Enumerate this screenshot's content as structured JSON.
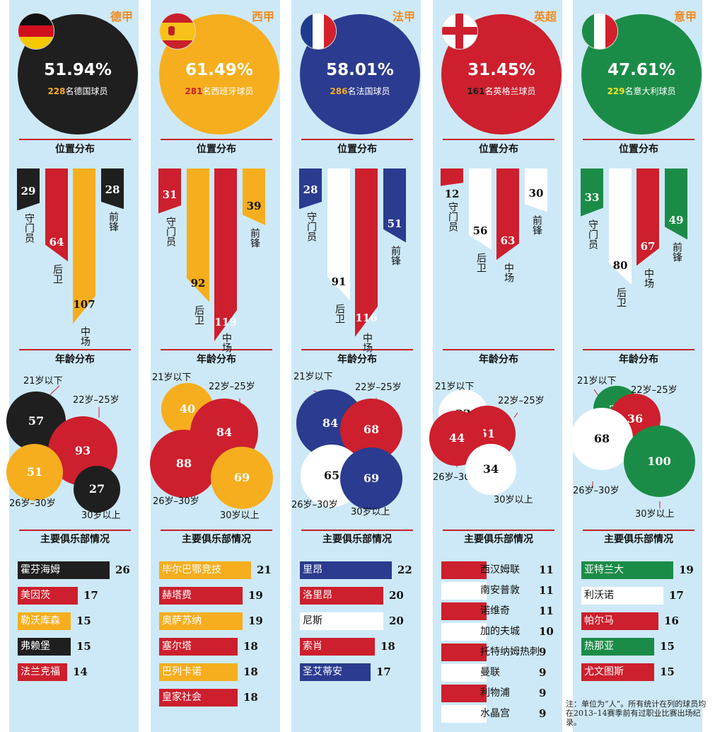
{
  "section_titles": {
    "position": "位置分布",
    "age": "年龄分布",
    "clubs": "主要俱乐部情况"
  },
  "note": "注：单位为“人”。所有统计在列的球员均在2013–14赛季前有过职业比赛出场纪录。",
  "colors": {
    "panel": "#cde9f7",
    "accent": "#c8202c"
  },
  "chart_data": [
    {
      "type": "bar",
      "league": "德甲",
      "flag": "germany",
      "percent": "51.94%",
      "players_count": "228",
      "players_suffix": "名德国球员",
      "colors": {
        "main": "#1f1f1f",
        "count": "#f6ae1e"
      },
      "positions": [
        {
          "label": "守门员",
          "value": 29,
          "color": "#1f1f1f"
        },
        {
          "label": "后卫",
          "value": 64,
          "color": "#cd1f2d"
        },
        {
          "label": "中场",
          "value": 107,
          "color": "#f6ae1e"
        },
        {
          "label": "前锋",
          "value": 28,
          "color": "#1f1f1f"
        }
      ],
      "ages": [
        {
          "label": "21岁以下",
          "value": 57,
          "color": "#1f1f1f"
        },
        {
          "label": "22岁–25岁",
          "value": 93,
          "color": "#cd1f2d"
        },
        {
          "label": "26岁–30岁",
          "value": 51,
          "color": "#f6ae1e"
        },
        {
          "label": "30岁以上",
          "value": 27,
          "color": "#1f1f1f"
        }
      ],
      "clubs": [
        {
          "name": "霍芬海姆",
          "value": 26,
          "color": "#1f1f1f"
        },
        {
          "name": "美因茨",
          "value": 17,
          "color": "#cd1f2d"
        },
        {
          "name": "勒沃库森",
          "value": 15,
          "color": "#f6ae1e"
        },
        {
          "name": "弗赖堡",
          "value": 15,
          "color": "#1f1f1f"
        },
        {
          "name": "法兰克福",
          "value": 14,
          "color": "#cd1f2d"
        }
      ]
    },
    {
      "type": "bar",
      "league": "西甲",
      "flag": "spain",
      "percent": "61.49%",
      "players_count": "281",
      "players_suffix": "名西班牙球员",
      "colors": {
        "main": "#f6ae1e",
        "count": "#cd1f2d"
      },
      "positions": [
        {
          "label": "守门员",
          "value": 31,
          "color": "#cd1f2d"
        },
        {
          "label": "后卫",
          "value": 92,
          "color": "#f6ae1e"
        },
        {
          "label": "中场",
          "value": 119,
          "color": "#cd1f2d"
        },
        {
          "label": "前锋",
          "value": 39,
          "color": "#f6ae1e"
        }
      ],
      "ages": [
        {
          "label": "21岁以下",
          "value": 40,
          "color": "#f6ae1e"
        },
        {
          "label": "22岁–25岁",
          "value": 84,
          "color": "#cd1f2d"
        },
        {
          "label": "26岁–30岁",
          "value": 88,
          "color": "#cd1f2d"
        },
        {
          "label": "30岁以上",
          "value": 69,
          "color": "#f6ae1e"
        }
      ],
      "clubs": [
        {
          "name": "毕尔巴鄂竞技",
          "value": 21,
          "color": "#f6ae1e"
        },
        {
          "name": "赫塔费",
          "value": 19,
          "color": "#cd1f2d"
        },
        {
          "name": "奥萨苏纳",
          "value": 19,
          "color": "#f6ae1e"
        },
        {
          "name": "塞尔塔",
          "value": 18,
          "color": "#cd1f2d"
        },
        {
          "name": "巴列卡诺",
          "value": 18,
          "color": "#f6ae1e"
        },
        {
          "name": "皇家社会",
          "value": 18,
          "color": "#cd1f2d"
        }
      ]
    },
    {
      "type": "bar",
      "league": "法甲",
      "flag": "france",
      "percent": "58.01%",
      "players_count": "286",
      "players_suffix": "名法国球员",
      "colors": {
        "main": "#2b3b8f",
        "count": "#f6ae1e"
      },
      "positions": [
        {
          "label": "守门员",
          "value": 28,
          "color": "#2b3b8f"
        },
        {
          "label": "后卫",
          "value": 91,
          "color": "#ffffff"
        },
        {
          "label": "中场",
          "value": 116,
          "color": "#cd1f2d"
        },
        {
          "label": "前锋",
          "value": 51,
          "color": "#2b3b8f"
        }
      ],
      "ages": [
        {
          "label": "21岁以下",
          "value": 84,
          "color": "#2b3b8f"
        },
        {
          "label": "22岁–25岁",
          "value": 68,
          "color": "#cd1f2d"
        },
        {
          "label": "26岁–30岁",
          "value": 65,
          "color": "#ffffff"
        },
        {
          "label": "30岁以上",
          "value": 69,
          "color": "#2b3b8f"
        }
      ],
      "clubs": [
        {
          "name": "里昂",
          "value": 22,
          "color": "#2b3b8f"
        },
        {
          "name": "洛里昂",
          "value": 20,
          "color": "#cd1f2d"
        },
        {
          "name": "尼斯",
          "value": 20,
          "color": "#ffffff"
        },
        {
          "name": "索肖",
          "value": 18,
          "color": "#cd1f2d"
        },
        {
          "name": "圣艾蒂安",
          "value": 17,
          "color": "#2b3b8f"
        }
      ]
    },
    {
      "type": "bar",
      "league": "英超",
      "flag": "england",
      "percent": "31.45%",
      "players_count": "161",
      "players_suffix": "名英格兰球员",
      "colors": {
        "main": "#cd1f2d",
        "count": "#1f1f1f"
      },
      "positions": [
        {
          "label": "守门员",
          "value": 12,
          "color": "#cd1f2d"
        },
        {
          "label": "后卫",
          "value": 56,
          "color": "#ffffff"
        },
        {
          "label": "中场",
          "value": 63,
          "color": "#cd1f2d"
        },
        {
          "label": "前锋",
          "value": 30,
          "color": "#ffffff"
        }
      ],
      "ages": [
        {
          "label": "21岁以下",
          "value": 32,
          "color": "#ffffff"
        },
        {
          "label": "22岁–25岁",
          "value": 51,
          "color": "#cd1f2d"
        },
        {
          "label": "26岁–30岁",
          "value": 44,
          "color": "#cd1f2d"
        },
        {
          "label": "30岁以上",
          "value": 34,
          "color": "#ffffff"
        }
      ],
      "clubs": [
        {
          "name": "西汉姆联",
          "value": 11,
          "color": "#cd1f2d"
        },
        {
          "name": "南安普敦",
          "value": 11,
          "color": "#ffffff"
        },
        {
          "name": "诺维奇",
          "value": 11,
          "color": "#cd1f2d"
        },
        {
          "name": "加的夫城",
          "value": 10,
          "color": "#ffffff"
        },
        {
          "name": "托特纳姆热刺",
          "value": 9,
          "color": "#cd1f2d"
        },
        {
          "name": "曼联",
          "value": 9,
          "color": "#ffffff"
        },
        {
          "name": "利物浦",
          "value": 9,
          "color": "#cd1f2d"
        },
        {
          "name": "水晶宫",
          "value": 9,
          "color": "#ffffff"
        }
      ]
    },
    {
      "type": "bar",
      "league": "意甲",
      "flag": "italy",
      "percent": "47.61%",
      "players_count": "229",
      "players_suffix": "名意大利球员",
      "colors": {
        "main": "#1b8c47",
        "count": "#f2e324"
      },
      "positions": [
        {
          "label": "守门员",
          "value": 33,
          "color": "#1b8c47"
        },
        {
          "label": "后卫",
          "value": 80,
          "color": "#ffffff"
        },
        {
          "label": "中场",
          "value": 67,
          "color": "#cd1f2d"
        },
        {
          "label": "前锋",
          "value": 49,
          "color": "#1b8c47"
        }
      ],
      "ages": [
        {
          "label": "21岁以下",
          "value": 25,
          "color": "#1b8c47"
        },
        {
          "label": "22岁–25岁",
          "value": 36,
          "color": "#cd1f2d"
        },
        {
          "label": "26岁–30岁",
          "value": 68,
          "color": "#ffffff"
        },
        {
          "label": "30岁以上",
          "value": 100,
          "color": "#1b8c47"
        }
      ],
      "clubs": [
        {
          "name": "亚特兰大",
          "value": 19,
          "color": "#1b8c47"
        },
        {
          "name": "利沃诺",
          "value": 17,
          "color": "#ffffff"
        },
        {
          "name": "帕尔马",
          "value": 16,
          "color": "#cd1f2d"
        },
        {
          "name": "热那亚",
          "value": 15,
          "color": "#1b8c47"
        },
        {
          "name": "尤文图斯",
          "value": 15,
          "color": "#cd1f2d"
        }
      ]
    }
  ]
}
